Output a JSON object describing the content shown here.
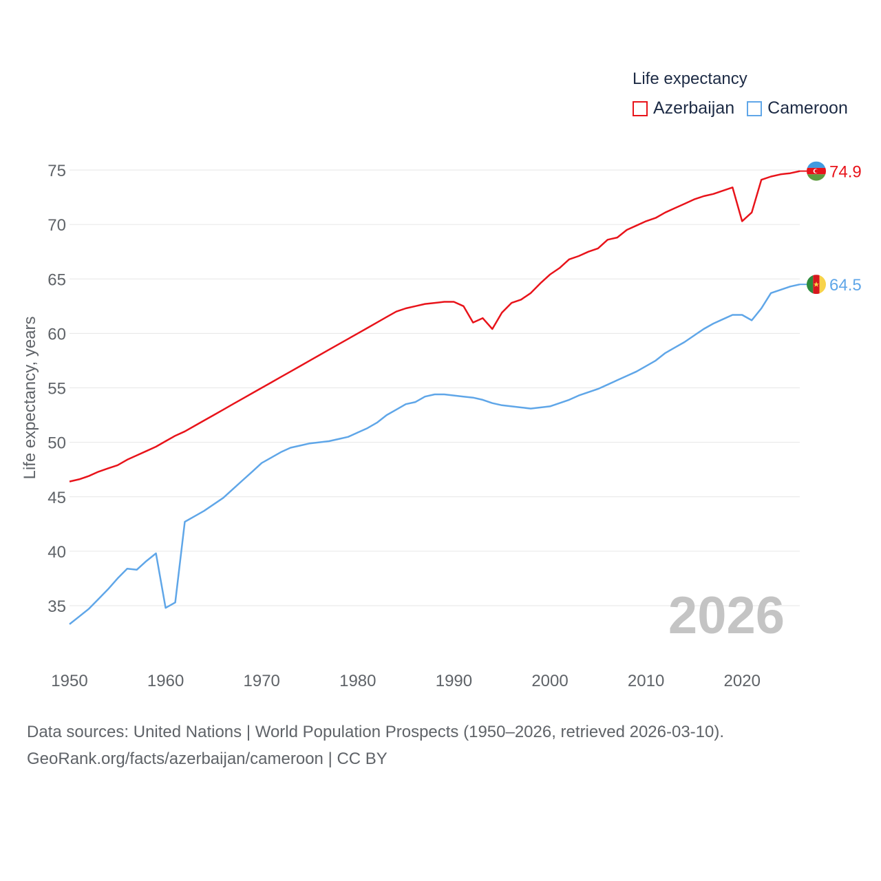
{
  "legend": {
    "title": "Life expectancy",
    "items": [
      {
        "name": "Azerbaijan",
        "color": "#e8131a"
      },
      {
        "name": "Cameroon",
        "color": "#5fa6e8"
      }
    ]
  },
  "footer": {
    "line1": "Data sources: United Nations | World Population Prospects (1950–2026, retrieved 2026-03-10).",
    "line2": "GeoRank.org/facts/azerbaijan/cameroon | CC BY"
  },
  "watermark_year": "2026",
  "chart_data": {
    "type": "line",
    "title": "Life expectancy",
    "xlabel": "",
    "ylabel": "Life expectancy, years",
    "xlim": [
      1950,
      2026
    ],
    "ylim": [
      32,
      77
    ],
    "x_ticks": [
      1950,
      1960,
      1970,
      1980,
      1990,
      2000,
      2010,
      2020
    ],
    "y_ticks": [
      35,
      40,
      45,
      50,
      55,
      60,
      65,
      70,
      75
    ],
    "grid": true,
    "legend_position": "top-right",
    "x": [
      1950,
      1951,
      1952,
      1953,
      1954,
      1955,
      1956,
      1957,
      1958,
      1959,
      1960,
      1961,
      1962,
      1963,
      1964,
      1965,
      1966,
      1967,
      1968,
      1969,
      1970,
      1971,
      1972,
      1973,
      1974,
      1975,
      1976,
      1977,
      1978,
      1979,
      1980,
      1981,
      1982,
      1983,
      1984,
      1985,
      1986,
      1987,
      1988,
      1989,
      1990,
      1991,
      1992,
      1993,
      1994,
      1995,
      1996,
      1997,
      1998,
      1999,
      2000,
      2001,
      2002,
      2003,
      2004,
      2005,
      2006,
      2007,
      2008,
      2009,
      2010,
      2011,
      2012,
      2013,
      2014,
      2015,
      2016,
      2017,
      2018,
      2019,
      2020,
      2021,
      2022,
      2023,
      2024,
      2025,
      2026
    ],
    "series": [
      {
        "name": "Azerbaijan",
        "color": "#e8131a",
        "end_label": "74.9",
        "values": [
          46.4,
          46.6,
          46.9,
          47.3,
          47.6,
          47.9,
          48.4,
          48.8,
          49.2,
          49.6,
          50.1,
          50.6,
          51.0,
          51.5,
          52.0,
          52.5,
          53.0,
          53.5,
          54.0,
          54.5,
          55.0,
          55.5,
          56.0,
          56.5,
          57.0,
          57.5,
          58.0,
          58.5,
          59.0,
          59.5,
          60.0,
          60.5,
          61.0,
          61.5,
          62.0,
          62.3,
          62.5,
          62.7,
          62.8,
          62.9,
          62.9,
          62.5,
          61.0,
          61.4,
          60.4,
          61.9,
          62.8,
          63.1,
          63.7,
          64.6,
          65.4,
          66.0,
          66.8,
          67.1,
          67.5,
          67.8,
          68.6,
          68.8,
          69.5,
          69.9,
          70.3,
          70.6,
          71.1,
          71.5,
          71.9,
          72.3,
          72.6,
          72.8,
          73.1,
          73.4,
          70.3,
          71.1,
          74.1,
          74.4,
          74.6,
          74.7,
          74.9
        ]
      },
      {
        "name": "Cameroon",
        "color": "#5fa6e8",
        "end_label": "64.5",
        "values": [
          33.3,
          34.0,
          34.7,
          35.6,
          36.5,
          37.5,
          38.4,
          38.3,
          39.1,
          39.8,
          34.8,
          35.3,
          42.7,
          43.2,
          43.7,
          44.3,
          44.9,
          45.7,
          46.5,
          47.3,
          48.1,
          48.6,
          49.1,
          49.5,
          49.7,
          49.9,
          50.0,
          50.1,
          50.3,
          50.5,
          50.9,
          51.3,
          51.8,
          52.5,
          53.0,
          53.5,
          53.7,
          54.2,
          54.4,
          54.4,
          54.3,
          54.2,
          54.1,
          53.9,
          53.6,
          53.4,
          53.3,
          53.2,
          53.1,
          53.2,
          53.3,
          53.6,
          53.9,
          54.3,
          54.6,
          54.9,
          55.3,
          55.7,
          56.1,
          56.5,
          57.0,
          57.5,
          58.2,
          58.7,
          59.2,
          59.8,
          60.4,
          60.9,
          61.3,
          61.7,
          61.7,
          61.2,
          62.3,
          63.7,
          64.0,
          64.3,
          64.5
        ]
      }
    ]
  }
}
